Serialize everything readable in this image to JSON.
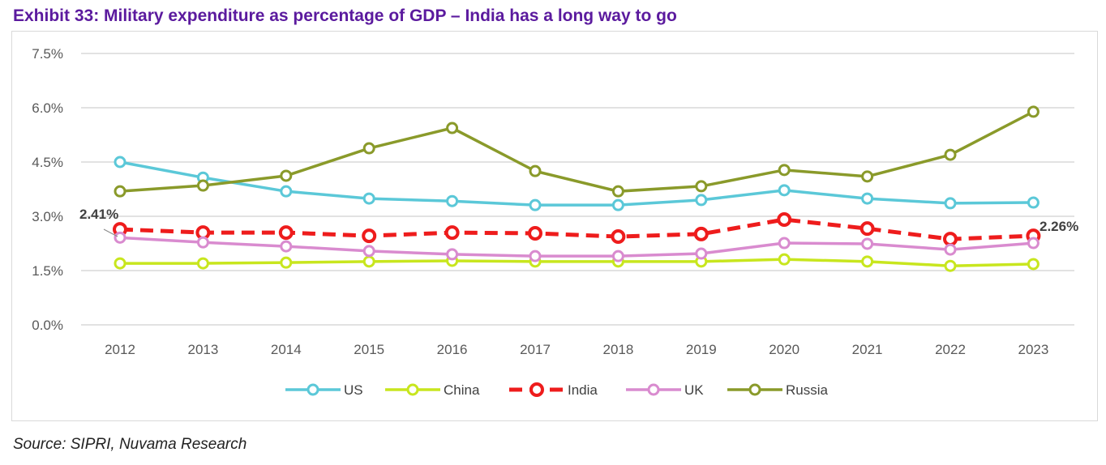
{
  "title": "Exhibit 33: Military expenditure as percentage of GDP – India has a long way to go",
  "source": "Source: SIPRI, Nuvama Research",
  "chart_data": {
    "type": "line",
    "title": "Exhibit 33: Military expenditure as percentage of GDP – India has a long way to go",
    "xlabel": "",
    "ylabel": "",
    "ylim": [
      0,
      7.5
    ],
    "yticks": [
      "0.0%",
      "1.5%",
      "3.0%",
      "4.5%",
      "6.0%",
      "7.5%"
    ],
    "ytick_values": [
      0,
      1.5,
      3,
      4.5,
      6,
      7.5
    ],
    "grid": true,
    "legend": "bottom",
    "categories": [
      "2012",
      "2013",
      "2014",
      "2015",
      "2016",
      "2017",
      "2018",
      "2019",
      "2020",
      "2021",
      "2022",
      "2023"
    ],
    "series": [
      {
        "name": "US",
        "color": "#5bc8d8",
        "dashed": false,
        "values": [
          4.5,
          4.07,
          3.69,
          3.49,
          3.42,
          3.31,
          3.31,
          3.45,
          3.72,
          3.49,
          3.36,
          3.38
        ]
      },
      {
        "name": "China",
        "color": "#c8e61e",
        "dashed": false,
        "values": [
          1.7,
          1.7,
          1.72,
          1.75,
          1.77,
          1.75,
          1.75,
          1.75,
          1.81,
          1.75,
          1.63,
          1.68
        ]
      },
      {
        "name": "India",
        "color": "#ee1c1c",
        "dashed": true,
        "values": [
          2.64,
          2.55,
          2.55,
          2.46,
          2.55,
          2.53,
          2.44,
          2.51,
          2.91,
          2.66,
          2.37,
          2.46
        ]
      },
      {
        "name": "UK",
        "color": "#d98bcf",
        "dashed": false,
        "values": [
          2.41,
          2.28,
          2.17,
          2.04,
          1.95,
          1.9,
          1.9,
          1.97,
          2.26,
          2.24,
          2.08,
          2.26
        ]
      },
      {
        "name": "Russia",
        "color": "#8a9a2a",
        "dashed": false,
        "values": [
          3.69,
          3.85,
          4.12,
          4.88,
          5.44,
          4.25,
          3.69,
          3.83,
          4.28,
          4.1,
          4.7,
          5.89
        ]
      }
    ],
    "annotations": [
      {
        "text": "2.41%",
        "series": "UK",
        "category": "2012"
      },
      {
        "text": "2.26%",
        "series": "UK",
        "category": "2023"
      }
    ]
  }
}
